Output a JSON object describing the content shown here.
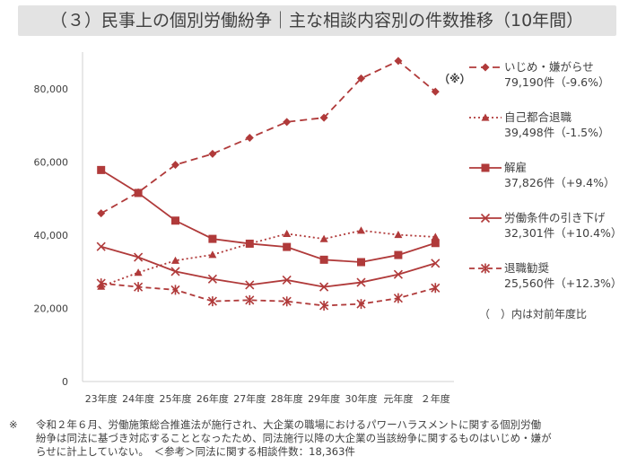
{
  "title": "（３）民事上の個別労働紛争｜主な相談内容別の件数推移（10年間）",
  "chart_data": {
    "type": "line",
    "categories": [
      "23年度",
      "24年度",
      "25年度",
      "26年度",
      "27年度",
      "28年度",
      "29年度",
      "30年度",
      "元年度",
      "２年度"
    ],
    "ylim": [
      0,
      90000
    ],
    "yticks": [
      "0",
      "20,000",
      "40,000",
      "60,000",
      "80,000"
    ],
    "ytick_values": [
      0,
      20000,
      40000,
      60000,
      80000
    ],
    "grid": false,
    "legend_position": "right",
    "series": [
      {
        "name": "いじめ・嫌がらせ",
        "value_label": "79,190件（-9.6%）",
        "color": "#b03a3a",
        "marker": "diamond",
        "dash": "8,5",
        "values": [
          45939,
          51670,
          59197,
          62191,
          66566,
          70917,
          72067,
          82797,
          87570,
          79190
        ]
      },
      {
        "name": "自己都合退職",
        "value_label": "39,498件（-1.5%）",
        "color": "#b03a3a",
        "marker": "triangle",
        "dash": "2,3",
        "values": [
          25966,
          29763,
          33049,
          34626,
          37648,
          40364,
          38954,
          41258,
          40081,
          39498
        ]
      },
      {
        "name": "解雇",
        "value_label": "37,826件（+9.4%）",
        "color": "#b03a3a",
        "marker": "square",
        "dash": "",
        "values": [
          57785,
          51515,
          43956,
          38966,
          37656,
          36760,
          33269,
          32614,
          34561,
          37826
        ]
      },
      {
        "name": "労働条件の引き下げ",
        "value_label": "32,301件（+10.4%）",
        "color": "#b03a3a",
        "marker": "x",
        "dash": "",
        "values": [
          36849,
          33955,
          30067,
          28015,
          26392,
          27723,
          25841,
          27082,
          29255,
          32301
        ]
      },
      {
        "name": "退職勧奨",
        "value_label": "25,560件（+12.3%）",
        "color": "#b03a3a",
        "marker": "asterisk",
        "dash": "6,4",
        "values": [
          26828,
          25838,
          25041,
          21928,
          22236,
          21902,
          20736,
          21184,
          22765,
          25560
        ]
      }
    ],
    "yoy_mark": "（※）",
    "legend_note": "（　）内は対前年度比"
  },
  "footnote": {
    "mark": "※",
    "lines": [
      "令和２年６月、労働施策総合推進法が施行され、大企業の職場におけるパワーハラスメントに関する個別労働",
      "紛争は同法に基づき対応することとなったため、同法施行以降の大企業の当該紛争に関するものはいじめ・嫌が",
      "らせに計上していない。　＜参考＞同法に関する相談件数：18,363件"
    ]
  }
}
